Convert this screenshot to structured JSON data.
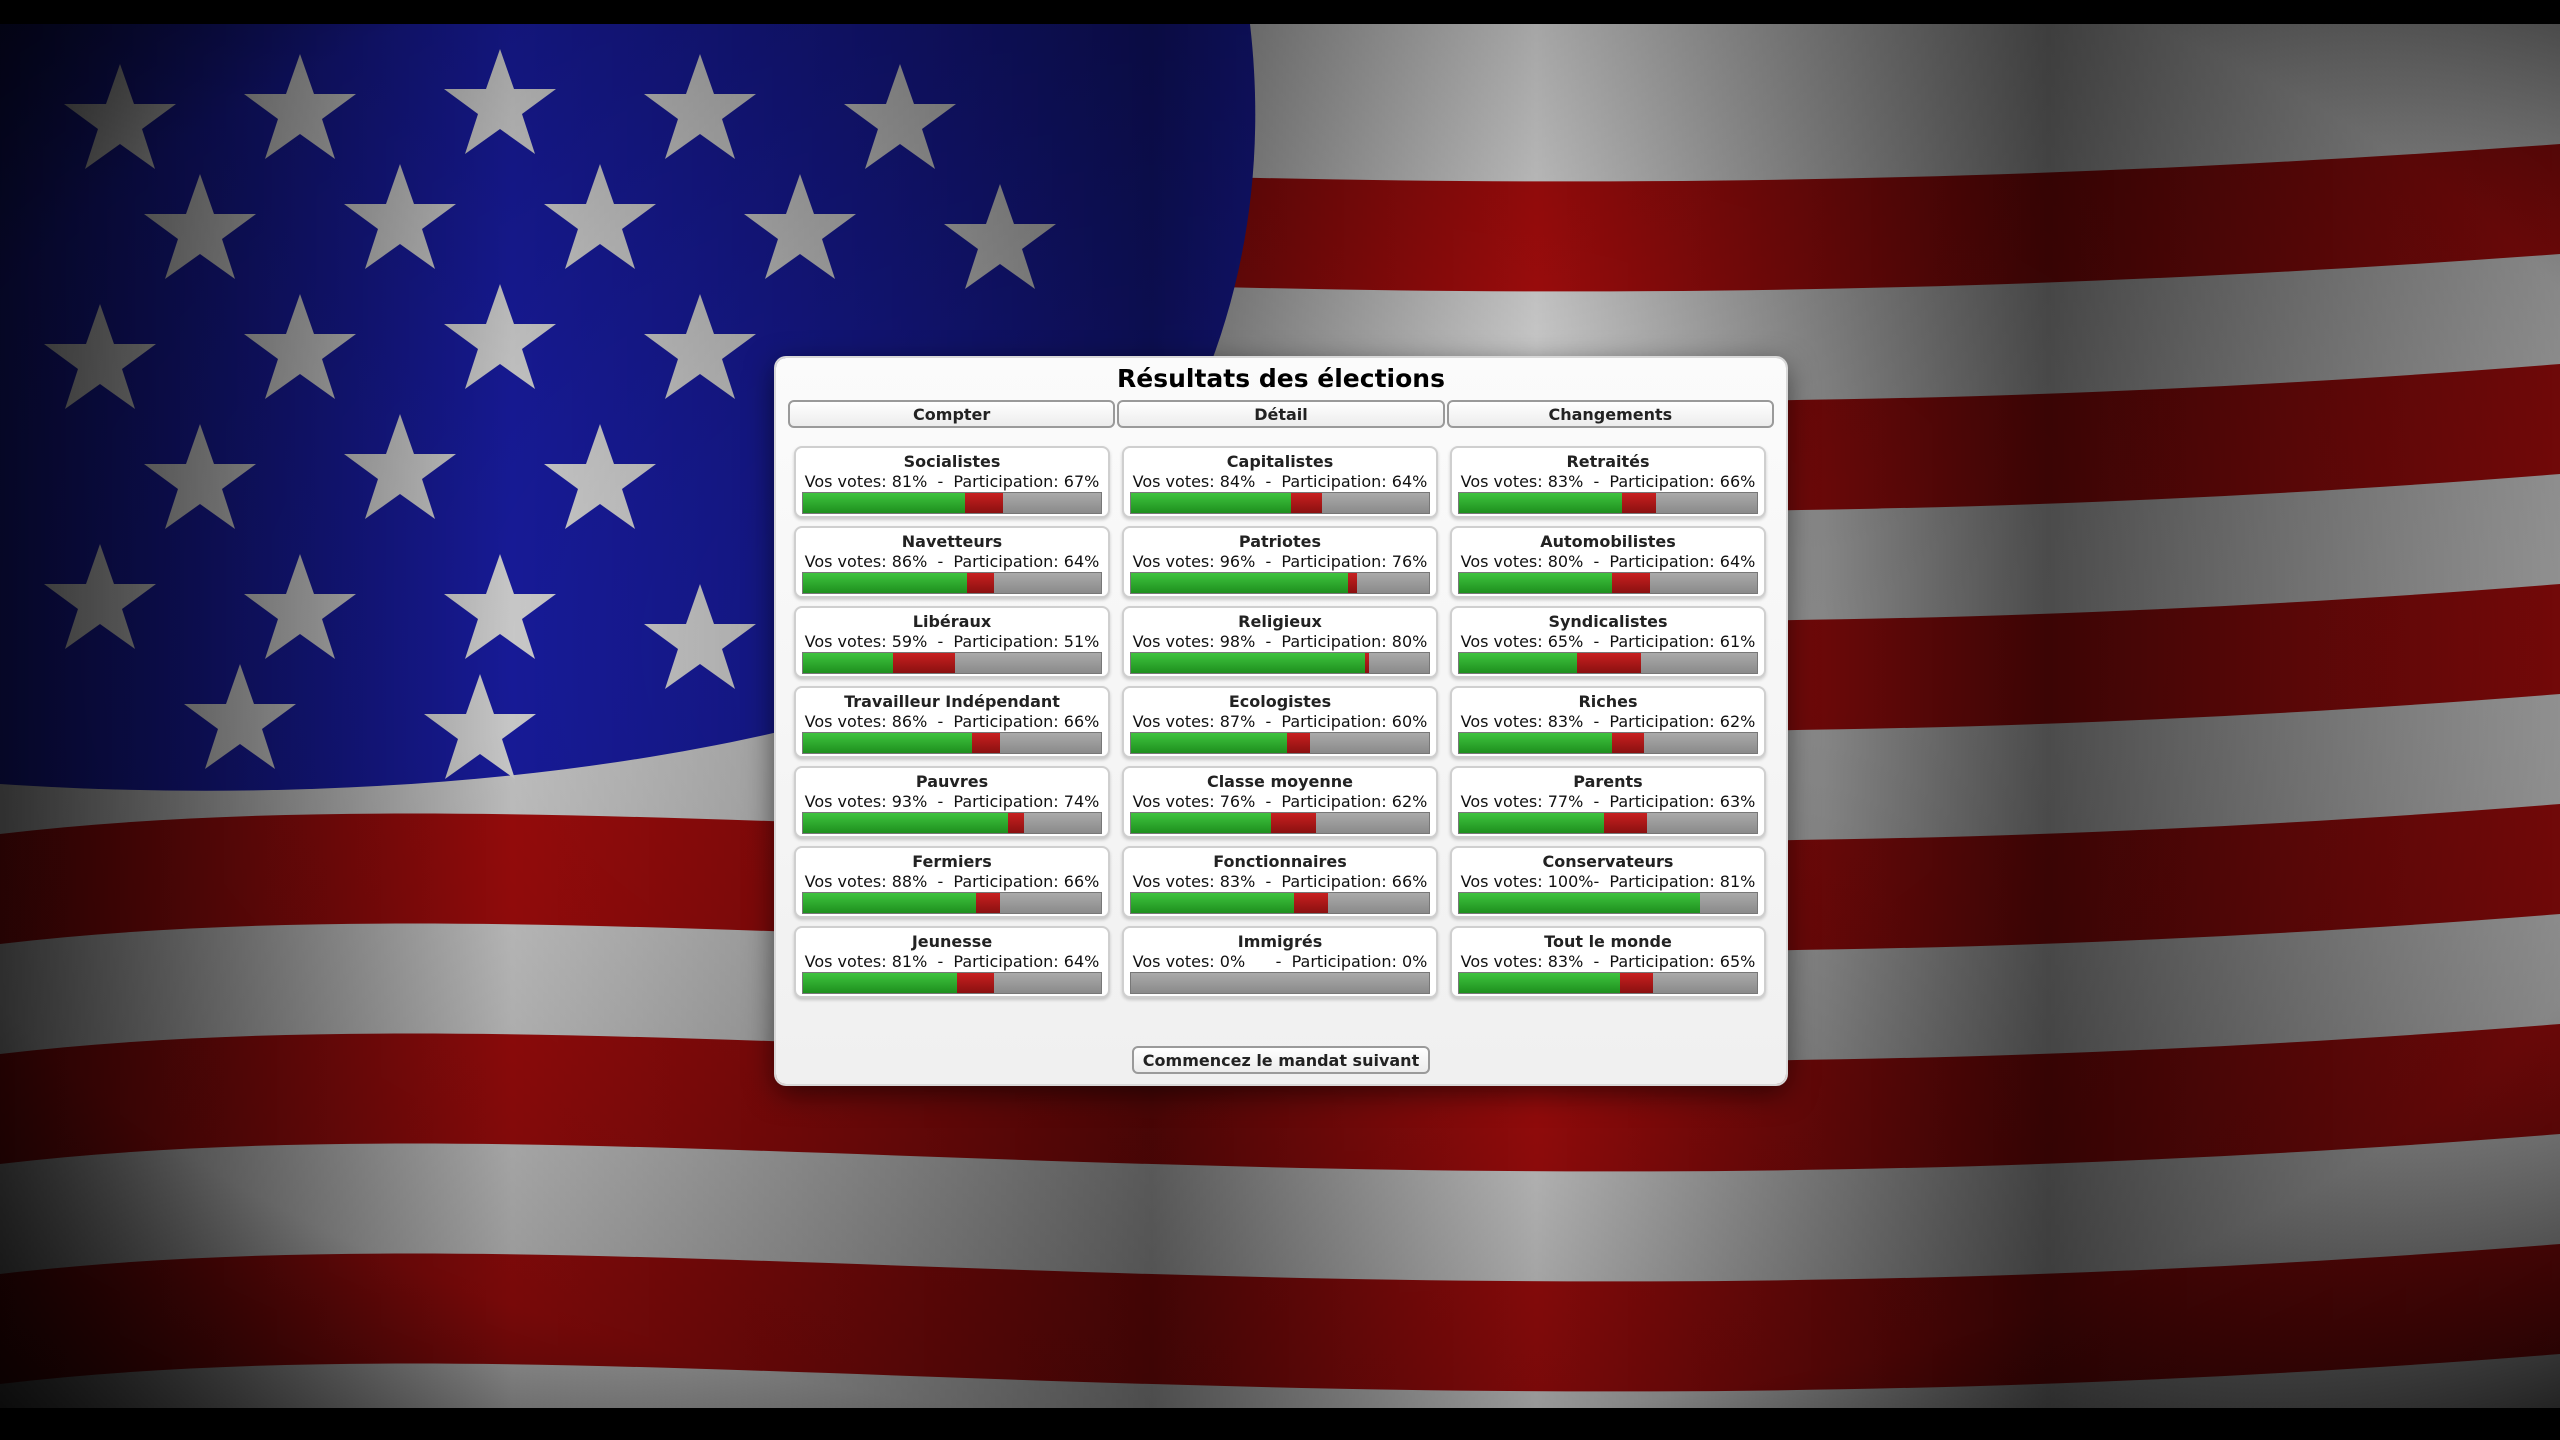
{
  "dialog": {
    "title": "Résultats des élections",
    "tabs": [
      "Compter",
      "Détail",
      "Changements"
    ],
    "next_button": "Commencez le mandat suivant"
  },
  "groups": [
    {
      "name": "Socialistes",
      "stats": "Vos votes: 81%  -  Participation: 67%",
      "votes": 0.81,
      "participation": 0.67
    },
    {
      "name": "Capitalistes",
      "stats": "Vos votes: 84%  -  Participation: 64%",
      "votes": 0.84,
      "participation": 0.64
    },
    {
      "name": "Retraités",
      "stats": "Vos votes: 83%  -  Participation: 66%",
      "votes": 0.83,
      "participation": 0.66
    },
    {
      "name": "Navetteurs",
      "stats": "Vos votes: 86%  -  Participation: 64%",
      "votes": 0.86,
      "participation": 0.64
    },
    {
      "name": "Patriotes",
      "stats": "Vos votes: 96%  -  Participation: 76%",
      "votes": 0.96,
      "participation": 0.76
    },
    {
      "name": "Automobilistes",
      "stats": "Vos votes: 80%  -  Participation: 64%",
      "votes": 0.8,
      "participation": 0.64
    },
    {
      "name": "Libéraux",
      "stats": "Vos votes: 59%  -  Participation: 51%",
      "votes": 0.59,
      "participation": 0.51
    },
    {
      "name": "Religieux",
      "stats": "Vos votes: 98%  -  Participation: 80%",
      "votes": 0.98,
      "participation": 0.8
    },
    {
      "name": "Syndicalistes",
      "stats": "Vos votes: 65%  -  Participation: 61%",
      "votes": 0.65,
      "participation": 0.61
    },
    {
      "name": "Travailleur Indépendant",
      "stats": "Vos votes: 86%  -  Participation: 66%",
      "votes": 0.86,
      "participation": 0.66
    },
    {
      "name": "Ecologistes",
      "stats": "Vos votes: 87%  -  Participation: 60%",
      "votes": 0.87,
      "participation": 0.6
    },
    {
      "name": "Riches",
      "stats": "Vos votes: 83%  -  Participation: 62%",
      "votes": 0.83,
      "participation": 0.62
    },
    {
      "name": "Pauvres",
      "stats": "Vos votes: 93%  -  Participation: 74%",
      "votes": 0.93,
      "participation": 0.74
    },
    {
      "name": "Classe moyenne",
      "stats": "Vos votes: 76%  -  Participation: 62%",
      "votes": 0.76,
      "participation": 0.62
    },
    {
      "name": "Parents",
      "stats": "Vos votes: 77%  -  Participation: 63%",
      "votes": 0.77,
      "participation": 0.63
    },
    {
      "name": "Fermiers",
      "stats": "Vos votes: 88%  -  Participation: 66%",
      "votes": 0.88,
      "participation": 0.66
    },
    {
      "name": "Fonctionnaires",
      "stats": "Vos votes: 83%  -  Participation: 66%",
      "votes": 0.83,
      "participation": 0.66
    },
    {
      "name": "Conservateurs",
      "stats": "Vos votes: 100%-  Participation: 81%",
      "votes": 1.0,
      "participation": 0.81
    },
    {
      "name": "Jeunesse",
      "stats": "Vos votes: 81%  -  Participation: 64%",
      "votes": 0.81,
      "participation": 0.64
    },
    {
      "name": "Immigrés",
      "stats": "Vos votes: 0%      -  Participation: 0%",
      "votes": 0.0,
      "participation": 0.0
    },
    {
      "name": "Tout le monde",
      "stats": "Vos votes: 83%  -  Participation: 65%",
      "votes": 0.83,
      "participation": 0.65
    }
  ],
  "colors": {
    "vote_bar": "#2aa82a",
    "other_bar": "#b01818",
    "abstain_bar": "#9a9a9a"
  }
}
